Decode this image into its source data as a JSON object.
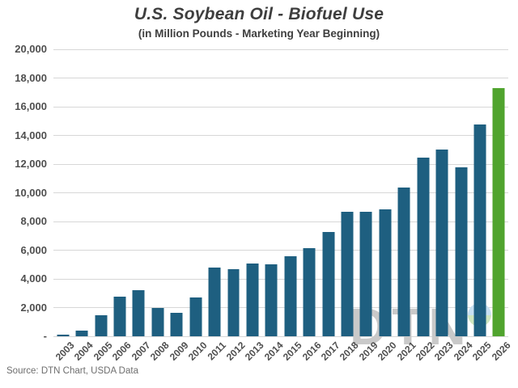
{
  "header": {
    "title": "U.S. Soybean Oil - Biofuel Use",
    "subtitle": "(in Million Pounds - Marketing Year Beginning)"
  },
  "footer": {
    "source": "Source: DTN Chart, USDA Data"
  },
  "watermark": {
    "text": "DTN",
    "icon": "globe-icon"
  },
  "colors": {
    "bar": "#1e5f80",
    "highlight_bar": "#50a42e",
    "gridline": "#d7d7d7",
    "axis_text": "#4f4f4f",
    "title_text": "#3e3e3e",
    "source_text": "#6e6e6e",
    "watermark_text": "#c9c9c9",
    "globe_top": "#c7e0f2",
    "globe_bottom": "#cfe6bf"
  },
  "chart_data": {
    "type": "bar",
    "title": "U.S. Soybean Oil - Biofuel Use",
    "subtitle": "(in Million Pounds - Marketing Year Beginning)",
    "categories": [
      "2003",
      "2004",
      "2005",
      "2006",
      "2007",
      "2008",
      "2009",
      "2010",
      "2011",
      "2012",
      "2013",
      "2014",
      "2015",
      "2016",
      "2017",
      "2018",
      "2019",
      "2020",
      "2021",
      "2022",
      "2023",
      "2024",
      "2025",
      "2026"
    ],
    "values": [
      100,
      400,
      1450,
      2750,
      3200,
      2000,
      1650,
      2700,
      4800,
      4700,
      5050,
      5000,
      5600,
      6150,
      7250,
      8650,
      8650,
      8850,
      10350,
      12450,
      13000,
      11750,
      14750,
      17300
    ],
    "highlight_index": 23,
    "highlight_note": "2026 bar drawn in green (projection)",
    "xlabel": "",
    "ylabel": "",
    "ylim": [
      0,
      20000
    ],
    "y_tick_step": 2000,
    "y_tick_labels": [
      "-",
      "2,000",
      "4,000",
      "6,000",
      "8,000",
      "10,000",
      "12,000",
      "14,000",
      "16,000",
      "18,000",
      "20,000"
    ],
    "grid": true,
    "legend": false
  }
}
